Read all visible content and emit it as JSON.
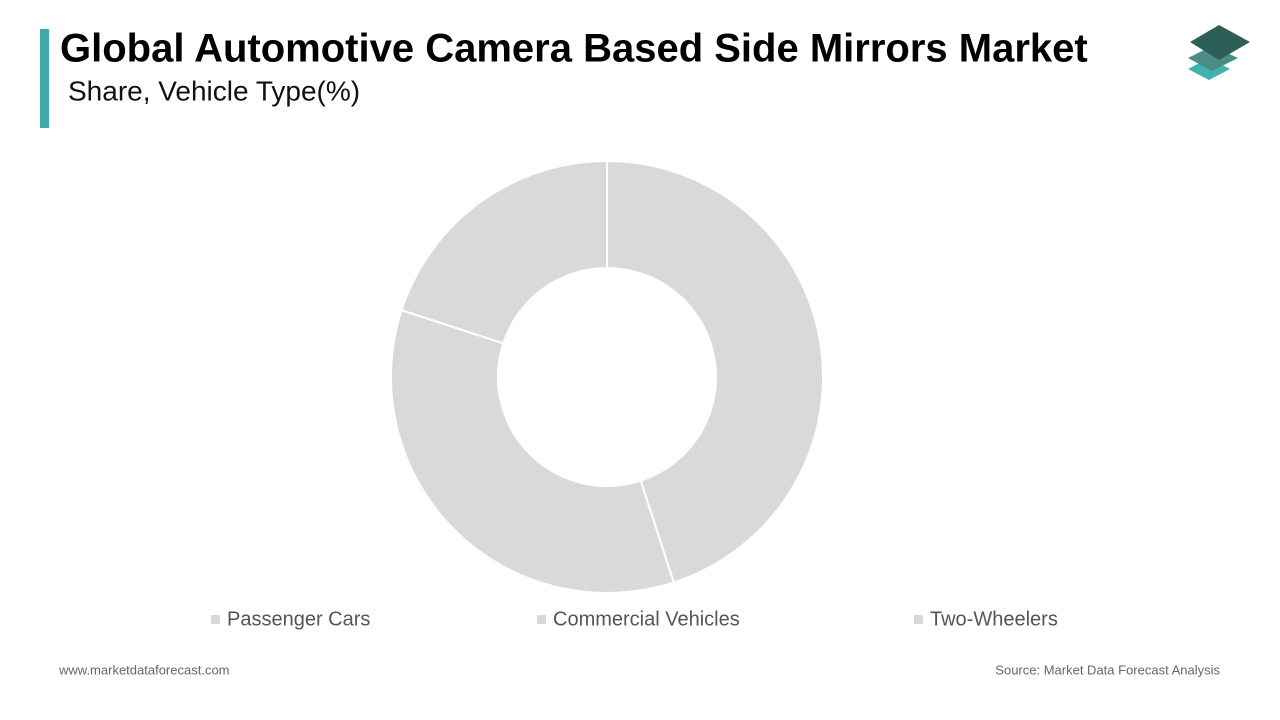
{
  "chart_data": {
    "type": "donut",
    "title": "Global Automotive Camera Based Side Mirrors Market",
    "subtitle": "Share, Vehicle Type(%)",
    "categories": [
      "Passenger Cars",
      "Commercial Vehicles",
      "Two-Wheelers"
    ],
    "values": [
      45,
      35,
      20
    ],
    "color": "#d9d9d9"
  },
  "footer": {
    "website": "www.marketdataforecast.com",
    "source": "Source: Market Data Forecast Analysis"
  }
}
